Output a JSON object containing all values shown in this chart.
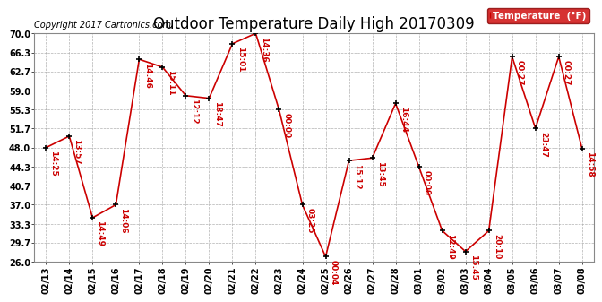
{
  "title": "Outdoor Temperature Daily High 20170309",
  "copyright": "Copyright 2017 Cartronics.com",
  "legend_label": "Temperature  (°F)",
  "dates": [
    "02/13",
    "02/14",
    "02/15",
    "02/16",
    "02/17",
    "02/18",
    "02/19",
    "02/20",
    "02/21",
    "02/22",
    "02/23",
    "02/24",
    "02/25",
    "02/26",
    "02/27",
    "02/28",
    "03/01",
    "03/02",
    "03/03",
    "03/04",
    "03/05",
    "03/06",
    "03/07",
    "03/08"
  ],
  "temperatures": [
    48.0,
    50.2,
    34.5,
    37.0,
    65.0,
    63.5,
    58.0,
    57.5,
    68.0,
    70.0,
    55.3,
    37.0,
    27.0,
    45.5,
    46.0,
    56.5,
    44.3,
    32.0,
    28.0,
    32.0,
    65.5,
    51.7,
    65.5,
    47.8
  ],
  "time_labels": [
    "14:25",
    "13:57",
    "14:49",
    "14:06",
    "14:46",
    "15:11",
    "12:12",
    "18:47",
    "15:01",
    "14:36",
    "00:00",
    "03:25",
    "00:04",
    "15:12",
    "13:45",
    "16:44",
    "00:00",
    "12:49",
    "15:45",
    "20:10",
    "00:27",
    "23:47",
    "00:27",
    "14:58"
  ],
  "ylim_min": 26.0,
  "ylim_max": 70.0,
  "yticks": [
    26.0,
    29.7,
    33.3,
    37.0,
    40.7,
    44.3,
    48.0,
    51.7,
    55.3,
    59.0,
    62.7,
    66.3,
    70.0
  ],
  "line_color": "#cc0000",
  "marker_color": "#000000",
  "bg_color": "#ffffff",
  "grid_color": "#aaaaaa",
  "title_fontsize": 12,
  "tick_fontsize": 7,
  "annot_fontsize": 6.5,
  "copyright_fontsize": 7,
  "legend_bg": "#cc0000",
  "legend_text_color": "#ffffff",
  "legend_fontsize": 7.5
}
